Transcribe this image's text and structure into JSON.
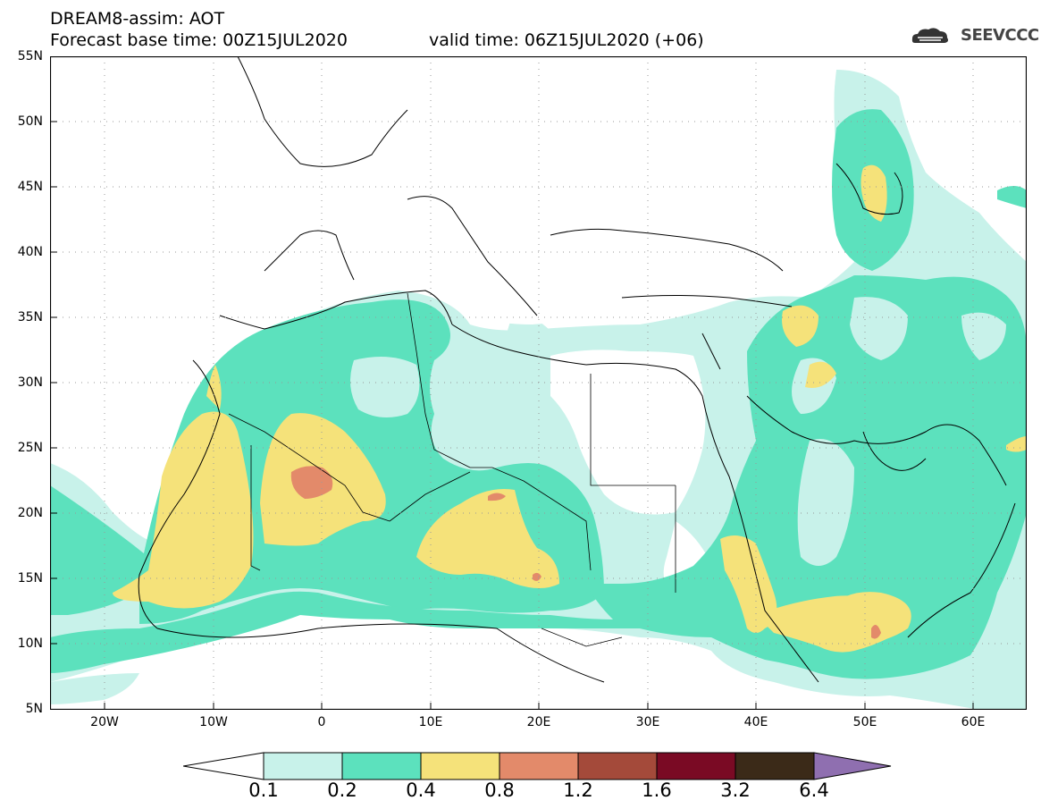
{
  "header": {
    "model": "DREAM8-assim: AOT",
    "base_time": "Forecast base time: 00Z15JUL2020",
    "valid_time": "valid time: 06Z15JUL2020 (+06)",
    "logo": "SEEVCCC"
  },
  "axes": {
    "lat_labels": [
      "55N",
      "50N",
      "45N",
      "40N",
      "35N",
      "30N",
      "25N",
      "20N",
      "15N",
      "10N",
      "5N"
    ],
    "lon_labels": [
      "20W",
      "10W",
      "0",
      "10E",
      "20E",
      "30E",
      "40E",
      "50E",
      "60E"
    ]
  },
  "colorbar": {
    "levels": [
      "0.1",
      "0.2",
      "0.4",
      "0.8",
      "1.2",
      "1.6",
      "3.2",
      "6.4"
    ],
    "colors": [
      "#ffffff",
      "#c8f2ea",
      "#5ce1bd",
      "#f5e27a",
      "#e38a6a",
      "#a44a3a",
      "#7a0a24",
      "#3b2a18",
      "#8f6fb0"
    ]
  },
  "fields": {
    "bins": [
      "0.1-0.2",
      "0.2-0.4",
      "0.4-0.8",
      "0.8-1.2"
    ],
    "colors": {
      "lt": "#c8f2ea",
      "md": "#5ce1bd",
      "hi": "#f5e27a",
      "vh": "#e38a6a"
    }
  }
}
